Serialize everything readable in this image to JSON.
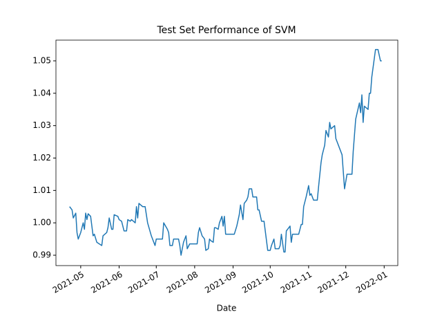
{
  "chart_data": {
    "type": "line",
    "title": "Test Set Performance of SVM",
    "xlabel": "Date",
    "x": [
      18739,
      18741,
      18742,
      18744,
      18745,
      18746,
      18748,
      18750,
      18751,
      18752,
      18753,
      18754,
      18756,
      18758,
      18759,
      18761,
      18765,
      18766,
      18769,
      18770,
      18771,
      18773,
      18774,
      18775,
      18778,
      18779,
      18781,
      18783,
      18785,
      18786,
      18788,
      18789,
      18792,
      18793,
      18794,
      18795,
      18798,
      18800,
      18802,
      18805,
      18808,
      18809,
      18814,
      18815,
      18818,
      18819,
      18820,
      18822,
      18823,
      18827,
      18828,
      18829,
      18831,
      18833,
      18834,
      18836,
      18839,
      18842,
      18843,
      18844,
      18846,
      18848,
      18849,
      18851,
      18852,
      18853,
      18855,
      18856,
      18857,
      18859,
      18860,
      18862,
      18863,
      18864,
      18865,
      18872,
      18874,
      18876,
      18877,
      18879,
      18880,
      18882,
      18883,
      18884,
      18886,
      18887,
      18890,
      18891,
      18892,
      18894,
      18896,
      18899,
      18901,
      18902,
      18904,
      18905,
      18908,
      18909,
      18910,
      18912,
      18913,
      18914,
      18915,
      18917,
      18918,
      18919,
      18924,
      18926,
      18927,
      18928,
      18930,
      18932,
      18933,
      18934,
      18936,
      18939,
      18940,
      18942,
      18943,
      18945,
      18946,
      18948,
      18949,
      18950,
      18953,
      18954,
      18959,
      18961,
      18963,
      18967,
      18968,
      18970,
      18973,
      18974,
      18975,
      18976,
      18977,
      18980,
      18981,
      18982,
      18983,
      18986,
      18988,
      18990,
      18991
    ],
    "series": [
      {
        "name": "SVM",
        "color": "#1f77b4",
        "values": [
          1.005,
          1.004,
          1.0015,
          1.003,
          0.997,
          0.995,
          0.997,
          1.0,
          0.998,
          1.003,
          1.001,
          1.0028,
          1.002,
          0.996,
          0.9965,
          0.994,
          0.993,
          0.996,
          0.997,
          0.9985,
          1.0015,
          0.998,
          0.998,
          1.0025,
          1.002,
          1.001,
          1.0005,
          0.9975,
          0.9975,
          1.001,
          1.0005,
          1.001,
          1.0,
          1.005,
          1.0015,
          1.006,
          1.005,
          1.005,
          1.0,
          0.996,
          0.993,
          0.995,
          0.995,
          1.0,
          0.998,
          0.997,
          0.993,
          0.993,
          0.995,
          0.995,
          0.993,
          0.99,
          0.994,
          0.996,
          0.992,
          0.9935,
          0.9935,
          0.9935,
          0.997,
          0.9985,
          0.996,
          0.995,
          0.9915,
          0.992,
          0.995,
          0.9945,
          0.994,
          0.9985,
          0.9985,
          0.998,
          1.0,
          1.002,
          0.999,
          1.002,
          0.9965,
          0.9965,
          0.999,
          1.0025,
          1.0055,
          1.001,
          1.006,
          1.007,
          1.008,
          1.0105,
          1.0105,
          1.008,
          1.008,
          1.004,
          1.004,
          1.0005,
          1.0005,
          0.9915,
          0.9915,
          0.993,
          0.995,
          0.992,
          0.992,
          0.993,
          0.9965,
          0.991,
          0.991,
          0.9975,
          0.998,
          0.999,
          0.994,
          0.9965,
          0.9965,
          0.9995,
          0.9995,
          1.005,
          1.008,
          1.0115,
          1.0085,
          1.009,
          1.007,
          1.007,
          1.011,
          1.0185,
          1.021,
          1.024,
          1.0285,
          1.0265,
          1.031,
          1.029,
          1.03,
          1.026,
          1.021,
          1.0105,
          1.015,
          1.015,
          1.022,
          1.032,
          1.037,
          1.034,
          1.0395,
          1.031,
          1.036,
          1.035,
          1.04,
          1.04,
          1.045,
          1.0535,
          1.0535,
          1.05,
          1.05
        ]
      }
    ],
    "xlim": [
      18728,
      19004
    ],
    "xticks": [
      {
        "value": 18748,
        "label": "2021-05"
      },
      {
        "value": 18779,
        "label": "2021-06"
      },
      {
        "value": 18809,
        "label": "2021-07"
      },
      {
        "value": 18840,
        "label": "2021-08"
      },
      {
        "value": 18871,
        "label": "2021-09"
      },
      {
        "value": 18901,
        "label": "2021-10"
      },
      {
        "value": 18932,
        "label": "2021-11"
      },
      {
        "value": 18962,
        "label": "2021-12"
      },
      {
        "value": 18993,
        "label": "2022-01"
      }
    ],
    "ylim": [
      0.9868,
      1.0564
    ],
    "yticks": [
      0.99,
      {
        "value": 1,
        "label": "1.00"
      },
      1.01,
      1.02,
      1.03,
      1.04,
      1.05
    ],
    "grid": false
  }
}
